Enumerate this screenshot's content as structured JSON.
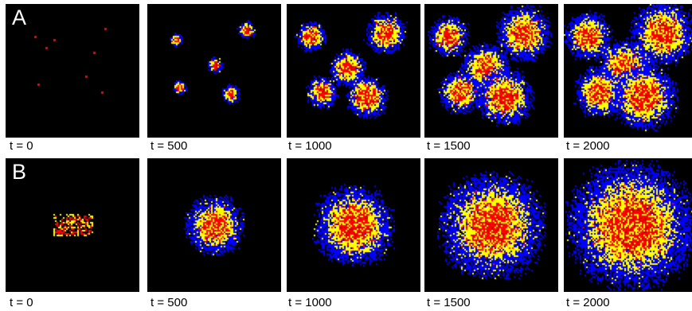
{
  "rows": [
    {
      "letter": "A",
      "mode": "scattered",
      "panels": [
        {
          "time_label": "t = 0",
          "t": 0
        },
        {
          "time_label": "t = 500",
          "t": 500
        },
        {
          "time_label": "t = 1000",
          "t": 1000
        },
        {
          "time_label": "t = 1500",
          "t": 1500
        },
        {
          "time_label": "t = 2000",
          "t": 2000
        }
      ]
    },
    {
      "letter": "B",
      "mode": "block",
      "panels": [
        {
          "time_label": "t = 0",
          "t": 0
        },
        {
          "time_label": "t = 500",
          "t": 500
        },
        {
          "time_label": "t = 1000",
          "t": 1000
        },
        {
          "time_label": "t = 1500",
          "t": 1500
        },
        {
          "time_label": "t = 2000",
          "t": 2000
        }
      ]
    }
  ],
  "colors": {
    "background": "#000000",
    "core": "#ff0000",
    "middle": "#ffff00",
    "outer": "#0000ff"
  }
}
